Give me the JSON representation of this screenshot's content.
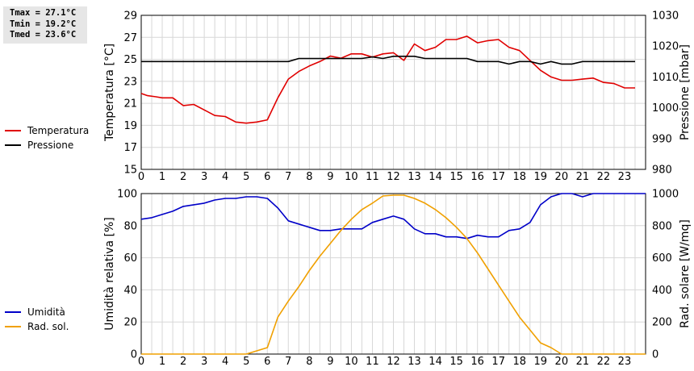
{
  "stats": {
    "tmax": "Tmax = 27.1°C",
    "tmin": "Tmin = 19.2°C",
    "tmed": "Tmed = 23.6°C"
  },
  "chart_data": [
    {
      "type": "line",
      "title": "",
      "xlabel": "",
      "xlim": [
        0,
        24
      ],
      "x_ticks": [
        0,
        1,
        2,
        3,
        4,
        5,
        6,
        7,
        8,
        9,
        10,
        11,
        12,
        13,
        14,
        15,
        16,
        17,
        18,
        19,
        20,
        21,
        22,
        23
      ],
      "ylabel": "Temperatura [°C]",
      "ylim": [
        15,
        29
      ],
      "y_ticks": [
        15,
        17,
        19,
        21,
        23,
        25,
        27,
        29
      ],
      "y2label": "Pressione [mbar]",
      "y2lim": [
        980,
        1030
      ],
      "y2_ticks": [
        980,
        990,
        1000,
        1010,
        1020,
        1030
      ],
      "grid": true,
      "legend_position": "left",
      "series": [
        {
          "name": "Temperatura",
          "axis": "left",
          "color": "#e00000",
          "points": [
            [
              0,
              21.9
            ],
            [
              0.3,
              21.7
            ],
            [
              0.7,
              21.6
            ],
            [
              1,
              21.5
            ],
            [
              1.5,
              21.5
            ],
            [
              2,
              20.8
            ],
            [
              2.5,
              20.9
            ],
            [
              3,
              20.4
            ],
            [
              3.5,
              19.9
            ],
            [
              4,
              19.8
            ],
            [
              4.5,
              19.3
            ],
            [
              5,
              19.2
            ],
            [
              5.5,
              19.3
            ],
            [
              6,
              19.5
            ],
            [
              6.5,
              21.5
            ],
            [
              7,
              23.2
            ],
            [
              7.5,
              23.9
            ],
            [
              8,
              24.4
            ],
            [
              8.5,
              24.8
            ],
            [
              9,
              25.3
            ],
            [
              9.5,
              25.1
            ],
            [
              10,
              25.5
            ],
            [
              10.5,
              25.5
            ],
            [
              11,
              25.2
            ],
            [
              11.5,
              25.5
            ],
            [
              12,
              25.6
            ],
            [
              12.5,
              24.9
            ],
            [
              13,
              26.4
            ],
            [
              13.5,
              25.8
            ],
            [
              14,
              26.1
            ],
            [
              14.5,
              26.8
            ],
            [
              15,
              26.8
            ],
            [
              15.5,
              27.1
            ],
            [
              16,
              26.5
            ],
            [
              16.5,
              26.7
            ],
            [
              17,
              26.8
            ],
            [
              17.5,
              26.1
            ],
            [
              18,
              25.8
            ],
            [
              18.5,
              24.9
            ],
            [
              19,
              24.0
            ],
            [
              19.5,
              23.4
            ],
            [
              20,
              23.1
            ],
            [
              20.5,
              23.1
            ],
            [
              21,
              23.2
            ],
            [
              21.5,
              23.3
            ],
            [
              22,
              22.9
            ],
            [
              22.5,
              22.8
            ],
            [
              23,
              22.4
            ],
            [
              23.5,
              22.4
            ]
          ]
        },
        {
          "name": "Pressione",
          "axis": "right",
          "color": "#000000",
          "points": [
            [
              0,
              1015
            ],
            [
              7,
              1015
            ],
            [
              7.5,
              1016
            ],
            [
              10.5,
              1016
            ],
            [
              11,
              1016.5
            ],
            [
              11.5,
              1016
            ],
            [
              12,
              1016.7
            ],
            [
              13,
              1016.7
            ],
            [
              13.5,
              1016
            ],
            [
              15.5,
              1016
            ],
            [
              16,
              1015
            ],
            [
              17,
              1015
            ],
            [
              17.5,
              1014.2
            ],
            [
              18,
              1015
            ],
            [
              18.5,
              1015
            ],
            [
              19,
              1014.2
            ],
            [
              19.5,
              1015
            ],
            [
              20,
              1014.2
            ],
            [
              20.5,
              1014.2
            ],
            [
              21,
              1015
            ],
            [
              23.5,
              1015
            ]
          ]
        }
      ]
    },
    {
      "type": "line",
      "title": "",
      "xlabel": "",
      "xlim": [
        0,
        24
      ],
      "x_ticks": [
        0,
        1,
        2,
        3,
        4,
        5,
        6,
        7,
        8,
        9,
        10,
        11,
        12,
        13,
        14,
        15,
        16,
        17,
        18,
        19,
        20,
        21,
        22,
        23
      ],
      "ylabel": "Umidità relativa [%]",
      "ylim": [
        0,
        100
      ],
      "y_ticks": [
        0,
        20,
        40,
        60,
        80,
        100
      ],
      "y2label": "Rad. solare [W/mq]",
      "y2lim": [
        0,
        1000
      ],
      "y2_ticks": [
        0,
        200,
        400,
        600,
        800,
        1000
      ],
      "grid": true,
      "legend_position": "left",
      "series": [
        {
          "name": "Umidità",
          "axis": "left",
          "color": "#0000c8",
          "points": [
            [
              0,
              84
            ],
            [
              0.5,
              85
            ],
            [
              1,
              87
            ],
            [
              1.5,
              89
            ],
            [
              2,
              92
            ],
            [
              2.5,
              93
            ],
            [
              3,
              94
            ],
            [
              3.5,
              96
            ],
            [
              4,
              97
            ],
            [
              4.5,
              97
            ],
            [
              5,
              98
            ],
            [
              5.5,
              98
            ],
            [
              6,
              97
            ],
            [
              6.5,
              91
            ],
            [
              7,
              83
            ],
            [
              7.5,
              81
            ],
            [
              8,
              79
            ],
            [
              8.5,
              77
            ],
            [
              9,
              77
            ],
            [
              9.5,
              78
            ],
            [
              10,
              78
            ],
            [
              10.5,
              78
            ],
            [
              11,
              82
            ],
            [
              11.5,
              84
            ],
            [
              12,
              86
            ],
            [
              12.5,
              84
            ],
            [
              13,
              78
            ],
            [
              13.5,
              75
            ],
            [
              14,
              75
            ],
            [
              14.5,
              73
            ],
            [
              15,
              73
            ],
            [
              15.5,
              72
            ],
            [
              16,
              74
            ],
            [
              16.5,
              73
            ],
            [
              17,
              73
            ],
            [
              17.5,
              77
            ],
            [
              18,
              78
            ],
            [
              18.5,
              82
            ],
            [
              19,
              93
            ],
            [
              19.5,
              98
            ],
            [
              20,
              100
            ],
            [
              20.5,
              100
            ],
            [
              21,
              98
            ],
            [
              21.5,
              100
            ],
            [
              22,
              100
            ],
            [
              24,
              100
            ]
          ]
        },
        {
          "name": "Rad. sol.",
          "axis": "right",
          "color": "#f0a000",
          "points": [
            [
              0,
              0
            ],
            [
              5,
              0
            ],
            [
              5.5,
              20
            ],
            [
              6,
              40
            ],
            [
              6.5,
              230
            ],
            [
              7,
              330
            ],
            [
              7.5,
              420
            ],
            [
              8,
              520
            ],
            [
              8.5,
              610
            ],
            [
              9,
              690
            ],
            [
              9.5,
              770
            ],
            [
              10,
              840
            ],
            [
              10.5,
              900
            ],
            [
              11,
              940
            ],
            [
              11.5,
              985
            ],
            [
              12,
              990
            ],
            [
              12.5,
              990
            ],
            [
              13,
              970
            ],
            [
              13.5,
              940
            ],
            [
              14,
              900
            ],
            [
              14.5,
              850
            ],
            [
              15,
              790
            ],
            [
              15.5,
              720
            ],
            [
              16,
              630
            ],
            [
              16.5,
              530
            ],
            [
              17,
              430
            ],
            [
              17.5,
              330
            ],
            [
              18,
              230
            ],
            [
              18.5,
              150
            ],
            [
              19,
              70
            ],
            [
              19.5,
              40
            ],
            [
              20,
              0
            ],
            [
              24,
              0
            ]
          ]
        }
      ]
    }
  ]
}
